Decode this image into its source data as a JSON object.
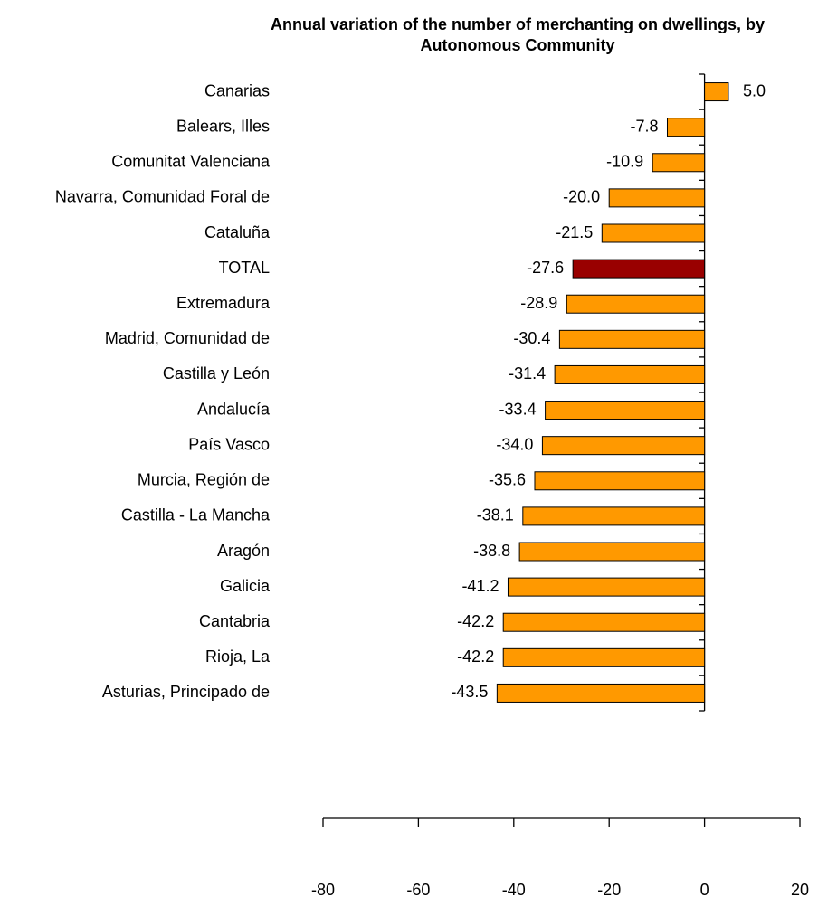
{
  "chart_data": {
    "type": "bar",
    "orientation": "horizontal",
    "title": [
      "Annual variation of the number of merchanting on dwellings, by",
      "Autonomous Community"
    ],
    "categories": [
      "Canarias",
      "Balears, Illes",
      "Comunitat Valenciana",
      "Navarra, Comunidad Foral de",
      "Cataluña",
      "TOTAL",
      "Extremadura",
      "Madrid, Comunidad de",
      "Castilla y León",
      "Andalucía",
      "País Vasco",
      "Murcia, Región de",
      "Castilla - La Mancha",
      "Aragón",
      "Galicia",
      "Cantabria",
      "Rioja, La",
      "Asturias, Principado de"
    ],
    "values": [
      5.0,
      -7.8,
      -10.9,
      -20.0,
      -21.5,
      -27.6,
      -28.9,
      -30.4,
      -31.4,
      -33.4,
      -34.0,
      -35.6,
      -38.1,
      -38.8,
      -41.2,
      -42.2,
      -42.2,
      -43.5
    ],
    "value_labels": [
      "5.0",
      "-7.8",
      "-10.9",
      "-20.0",
      "-21.5",
      "-27.6",
      "-28.9",
      "-30.4",
      "-31.4",
      "-33.4",
      "-34.0",
      "-35.6",
      "-38.1",
      "-38.8",
      "-41.2",
      "-42.2",
      "-42.2",
      "-43.5"
    ],
    "colors": [
      "#ff9900",
      "#ff9900",
      "#ff9900",
      "#ff9900",
      "#ff9900",
      "#990000",
      "#ff9900",
      "#ff9900",
      "#ff9900",
      "#ff9900",
      "#ff9900",
      "#ff9900",
      "#ff9900",
      "#ff9900",
      "#ff9900",
      "#ff9900",
      "#ff9900",
      "#ff9900"
    ],
    "xlim": [
      -80,
      20
    ],
    "xticks": [
      -80,
      -60,
      -40,
      -20,
      0,
      20
    ],
    "grid": false
  }
}
